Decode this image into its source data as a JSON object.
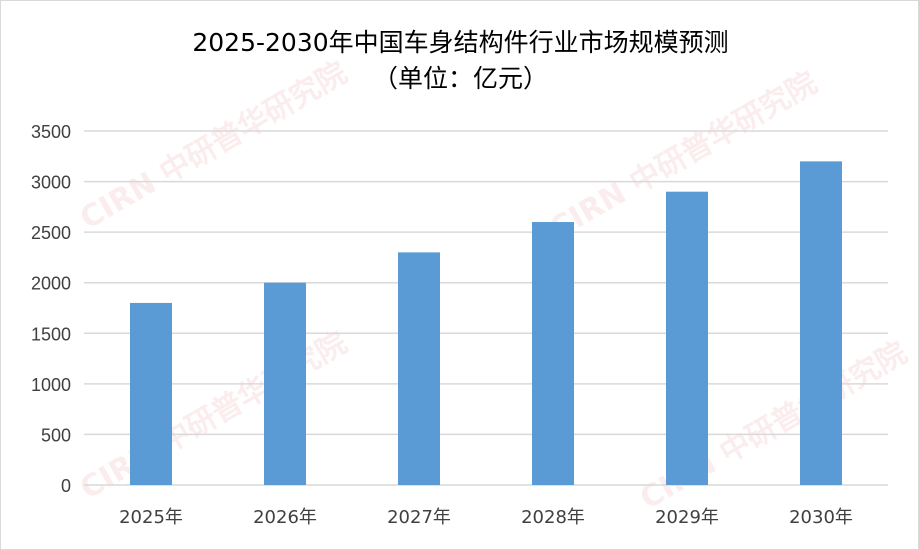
{
  "chart_data": {
    "type": "bar",
    "title": "2025-2030年中国车身结构件行业市场规模预测",
    "subtitle": "（单位：亿元）",
    "categories": [
      "2025年",
      "2026年",
      "2027年",
      "2028年",
      "2029年",
      "2030年"
    ],
    "values": [
      1800,
      2000,
      2300,
      2600,
      2900,
      3200
    ],
    "ylim": [
      0,
      3500
    ],
    "yticks": [
      0,
      500,
      1000,
      1500,
      2000,
      2500,
      3000,
      3500
    ],
    "grid": true,
    "bar_color": "#5b9bd5",
    "watermark": "www.ChinaIRN.com 中研普华研究院 CIRN"
  }
}
